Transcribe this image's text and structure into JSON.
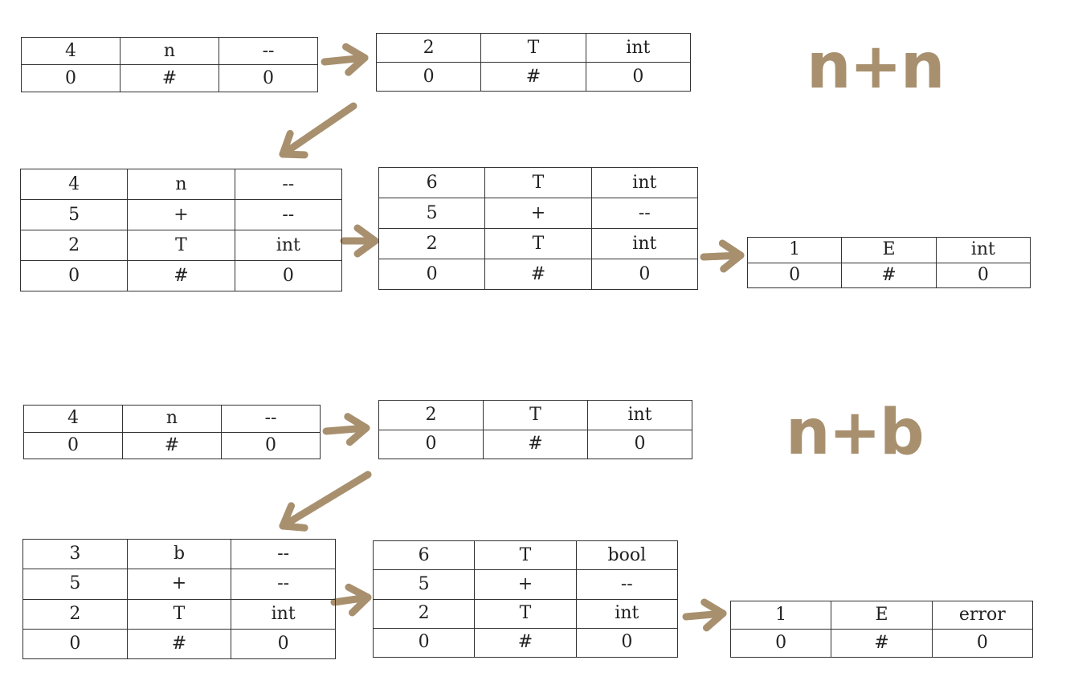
{
  "annotations": {
    "first_expr": "n+n",
    "second_expr": "n+b"
  },
  "colors": {
    "arrow": "#a8906f",
    "annotation": "#a8906f",
    "table_border": "#333333",
    "text": "#222222"
  },
  "tables": [
    {
      "id": "t1",
      "rows": [
        [
          "4",
          "n",
          "--"
        ],
        [
          "0",
          "#",
          "0"
        ]
      ]
    },
    {
      "id": "t2",
      "rows": [
        [
          "2",
          "T",
          "int"
        ],
        [
          "0",
          "#",
          "0"
        ]
      ]
    },
    {
      "id": "t3",
      "rows": [
        [
          "4",
          "n",
          "--"
        ],
        [
          "5",
          "+",
          "--"
        ],
        [
          "2",
          "T",
          "int"
        ],
        [
          "0",
          "#",
          "0"
        ]
      ]
    },
    {
      "id": "t4",
      "rows": [
        [
          "6",
          "T",
          "int"
        ],
        [
          "5",
          "+",
          "--"
        ],
        [
          "2",
          "T",
          "int"
        ],
        [
          "0",
          "#",
          "0"
        ]
      ]
    },
    {
      "id": "t5",
      "rows": [
        [
          "1",
          "E",
          "int"
        ],
        [
          "0",
          "#",
          "0"
        ]
      ]
    },
    {
      "id": "t6",
      "rows": [
        [
          "4",
          "n",
          "--"
        ],
        [
          "0",
          "#",
          "0"
        ]
      ]
    },
    {
      "id": "t7",
      "rows": [
        [
          "2",
          "T",
          "int"
        ],
        [
          "0",
          "#",
          "0"
        ]
      ]
    },
    {
      "id": "t8",
      "rows": [
        [
          "3",
          "b",
          "--"
        ],
        [
          "5",
          "+",
          "--"
        ],
        [
          "2",
          "T",
          "int"
        ],
        [
          "0",
          "#",
          "0"
        ]
      ]
    },
    {
      "id": "t9",
      "rows": [
        [
          "6",
          "T",
          "bool"
        ],
        [
          "5",
          "+",
          "--"
        ],
        [
          "2",
          "T",
          "int"
        ],
        [
          "0",
          "#",
          "0"
        ]
      ]
    },
    {
      "id": "t10",
      "rows": [
        [
          "1",
          "E",
          "error"
        ],
        [
          "0",
          "#",
          "0"
        ]
      ]
    }
  ]
}
